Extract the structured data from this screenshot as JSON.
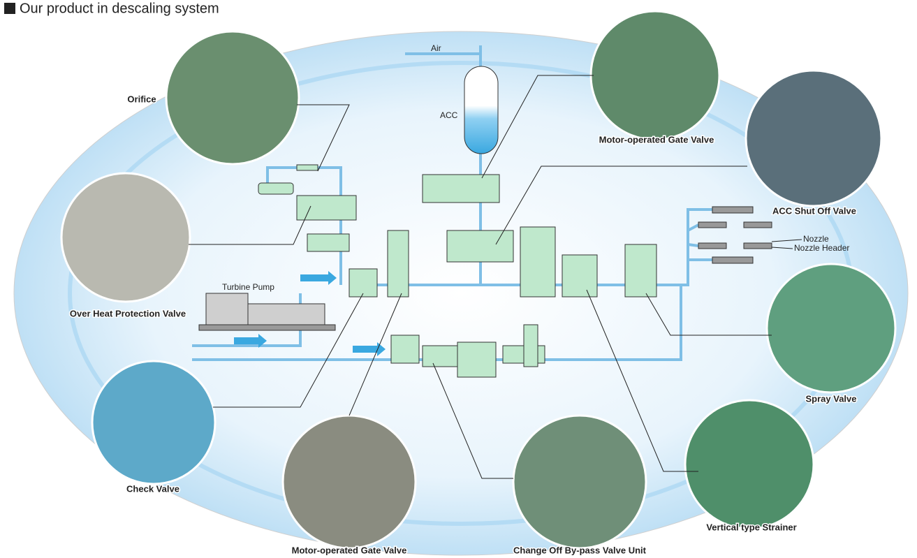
{
  "header": {
    "title": "Our product in descaling system"
  },
  "products": [
    {
      "label": "Orifice"
    },
    {
      "label": "Over Heat Protection Valve"
    },
    {
      "label": "Check Valve"
    },
    {
      "label": "Motor-operated Gate Valve"
    },
    {
      "label": "Change Off By-pass Valve Unit"
    },
    {
      "label": "Vertical type Strainer"
    },
    {
      "label": "Spray Valve"
    },
    {
      "label": "ACC Shut Off Valve"
    },
    {
      "label": "Motor-operated Gate Valve"
    }
  ],
  "diagram_labels": {
    "air": "Air",
    "acc": "ACC",
    "turbine_pump": "Turbine Pump",
    "nozzle": "Nozzle",
    "nozzle_header": "Nozzle Header"
  }
}
